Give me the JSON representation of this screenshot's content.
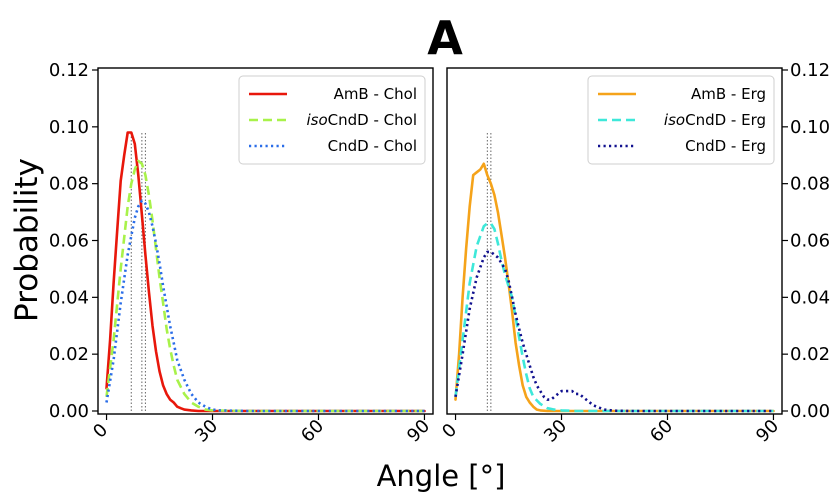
{
  "panel_label": "A",
  "shared_axes": {
    "xlabel": "Angle [°]",
    "ylabel": "Probability",
    "xlim": [
      0,
      90
    ],
    "ylim": [
      0,
      0.12
    ],
    "x_ticks": [
      "0",
      "30",
      "60",
      "90"
    ],
    "y_ticks": [
      "0.00",
      "0.02",
      "0.04",
      "0.06",
      "0.08",
      "0.10",
      "0.12"
    ]
  },
  "chart_data": [
    {
      "type": "line",
      "panel": "left",
      "xlim": [
        0,
        90
      ],
      "ylim": [
        0,
        0.12
      ],
      "legend_position": "top-right",
      "grid": false,
      "series": [
        {
          "name": "AmB - Chol",
          "name_italic_prefix": "",
          "name_rest": "AmB - Chol",
          "color": "#e8170b",
          "style": "solid",
          "x": [
            0,
            1,
            2,
            3,
            4,
            5,
            6,
            7,
            8,
            9,
            10,
            11,
            12,
            13,
            14,
            15,
            16,
            17,
            18,
            19,
            20,
            21,
            22,
            24,
            26,
            30,
            40,
            90
          ],
          "y": [
            0.008,
            0.025,
            0.045,
            0.063,
            0.081,
            0.09,
            0.098,
            0.098,
            0.094,
            0.083,
            0.069,
            0.055,
            0.042,
            0.03,
            0.021,
            0.014,
            0.009,
            0.006,
            0.004,
            0.003,
            0.0015,
            0.001,
            0.0005,
            0.0002,
            0,
            0,
            0,
            0
          ]
        },
        {
          "name": "isoCndD - Chol",
          "name_italic_prefix": "iso",
          "name_rest": "CndD - Chol",
          "color": "#a8f24a",
          "style": "dashed",
          "x": [
            0,
            2,
            4,
            6,
            7,
            8,
            9,
            10,
            11,
            12,
            13,
            14,
            15,
            16,
            17,
            18,
            19,
            20,
            22,
            24,
            26,
            28,
            30,
            40,
            90
          ],
          "y": [
            0.005,
            0.025,
            0.05,
            0.072,
            0.08,
            0.085,
            0.088,
            0.087,
            0.083,
            0.076,
            0.067,
            0.057,
            0.047,
            0.038,
            0.029,
            0.022,
            0.016,
            0.011,
            0.006,
            0.003,
            0.0015,
            0.0005,
            0.0002,
            0,
            0
          ]
        },
        {
          "name": "CndD - Chol",
          "name_italic_prefix": "",
          "name_rest": "CndD - Chol",
          "color": "#2a6de8",
          "style": "dotted",
          "x": [
            0,
            2,
            4,
            6,
            8,
            9,
            10,
            11,
            12,
            13,
            14,
            15,
            16,
            17,
            18,
            19,
            20,
            22,
            24,
            26,
            28,
            30,
            32,
            40,
            90
          ],
          "y": [
            0.003,
            0.018,
            0.038,
            0.055,
            0.068,
            0.072,
            0.074,
            0.073,
            0.07,
            0.065,
            0.059,
            0.052,
            0.044,
            0.037,
            0.03,
            0.024,
            0.018,
            0.011,
            0.006,
            0.003,
            0.0015,
            0.0005,
            0.0002,
            0,
            0
          ]
        }
      ],
      "reference_lines_x": [
        7,
        10,
        11
      ]
    },
    {
      "type": "line",
      "panel": "right",
      "xlim": [
        0,
        90
      ],
      "ylim": [
        0,
        0.12
      ],
      "legend_position": "top-right",
      "grid": false,
      "series": [
        {
          "name": "AmB - Erg",
          "name_italic_prefix": "",
          "name_rest": "AmB  - Erg",
          "color": "#f5a31a",
          "style": "solid",
          "x": [
            0,
            1,
            2,
            3,
            4,
            5,
            6,
            7,
            8,
            9,
            10,
            11,
            12,
            13,
            14,
            15,
            16,
            17,
            18,
            19,
            20,
            21,
            22,
            23,
            24,
            26,
            30,
            40,
            90
          ],
          "y": [
            0.004,
            0.02,
            0.04,
            0.057,
            0.072,
            0.083,
            0.084,
            0.085,
            0.087,
            0.083,
            0.08,
            0.076,
            0.07,
            0.062,
            0.054,
            0.045,
            0.035,
            0.024,
            0.016,
            0.009,
            0.005,
            0.003,
            0.0015,
            0.0005,
            0.0002,
            0,
            0,
            0,
            0
          ]
        },
        {
          "name": "isoCndD - Erg",
          "name_italic_prefix": "iso",
          "name_rest": "CndD - Erg",
          "color": "#3ee8d9",
          "style": "dashed",
          "x": [
            0,
            2,
            4,
            6,
            8,
            9,
            10,
            11,
            12,
            13,
            14,
            15,
            16,
            17,
            18,
            19,
            20,
            21,
            22,
            24,
            26,
            28,
            30,
            34,
            40,
            90
          ],
          "y": [
            0.005,
            0.025,
            0.045,
            0.058,
            0.065,
            0.066,
            0.066,
            0.064,
            0.059,
            0.053,
            0.048,
            0.044,
            0.04,
            0.033,
            0.026,
            0.019,
            0.013,
            0.008,
            0.005,
            0.0025,
            0.001,
            0.0005,
            0.0002,
            0,
            0,
            0
          ]
        },
        {
          "name": "CndD - Erg",
          "name_italic_prefix": "",
          "name_rest": "CndD - Erg",
          "color": "#11118f",
          "style": "dotted",
          "x": [
            0,
            2,
            4,
            6,
            8,
            9,
            10,
            11,
            12,
            13,
            14,
            15,
            16,
            17,
            18,
            19,
            20,
            21,
            22,
            23,
            24,
            25,
            26,
            27,
            28,
            29,
            30,
            31,
            32,
            33,
            34,
            35,
            36,
            37,
            38,
            39,
            40,
            42,
            45,
            50,
            90
          ],
          "y": [
            0.005,
            0.02,
            0.036,
            0.047,
            0.054,
            0.056,
            0.056,
            0.055,
            0.054,
            0.052,
            0.05,
            0.046,
            0.04,
            0.034,
            0.029,
            0.024,
            0.02,
            0.016,
            0.012,
            0.009,
            0.007,
            0.005,
            0.004,
            0.004,
            0.005,
            0.006,
            0.007,
            0.007,
            0.007,
            0.007,
            0.006,
            0.006,
            0.005,
            0.004,
            0.003,
            0.002,
            0.0015,
            0.0005,
            0.0001,
            0,
            0
          ]
        }
      ],
      "reference_lines_x": [
        9,
        10
      ]
    }
  ]
}
